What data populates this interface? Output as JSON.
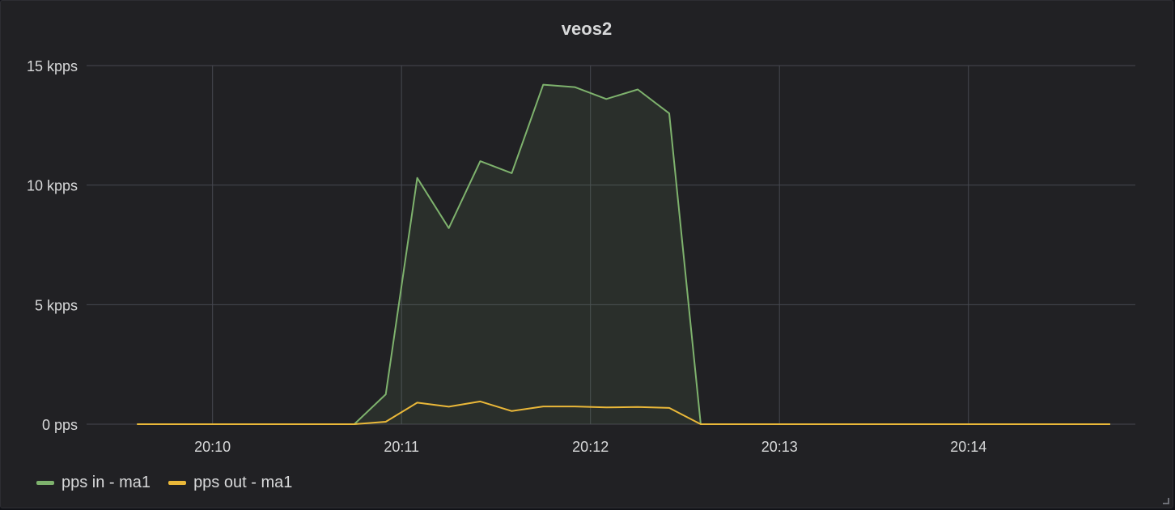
{
  "panel": {
    "title": "veos2"
  },
  "colors": {
    "background": "#212124",
    "grid": "#464850",
    "text": "#d8d9da",
    "pps_in": "#7eb26d",
    "pps_out": "#eab839"
  },
  "chart_data": {
    "type": "area",
    "title": "veos2",
    "xlabel": "",
    "ylabel": "",
    "ylim": [
      0,
      15000
    ],
    "xlim": [
      "20:09:20",
      "20:14:53"
    ],
    "y_ticks": [
      {
        "value": 0,
        "label": "0 pps"
      },
      {
        "value": 5000,
        "label": "5 kpps"
      },
      {
        "value": 10000,
        "label": "10 kpps"
      },
      {
        "value": 15000,
        "label": "15 kpps"
      }
    ],
    "x_ticks": [
      {
        "value": "20:10:00",
        "label": "20:10"
      },
      {
        "value": "20:11:00",
        "label": "20:11"
      },
      {
        "value": "20:12:00",
        "label": "20:12"
      },
      {
        "value": "20:13:00",
        "label": "20:13"
      },
      {
        "value": "20:14:00",
        "label": "20:14"
      }
    ],
    "grid": true,
    "legend_position": "bottom-left",
    "series": [
      {
        "name": "pps in - ma1",
        "color": "#7eb26d",
        "fill": true,
        "points": [
          [
            "20:09:36",
            0
          ],
          [
            "20:10:45",
            0
          ],
          [
            "20:10:55",
            1250
          ],
          [
            "20:11:05",
            10300
          ],
          [
            "20:11:15",
            8200
          ],
          [
            "20:11:25",
            11000
          ],
          [
            "20:11:35",
            10500
          ],
          [
            "20:11:45",
            14200
          ],
          [
            "20:11:55",
            14100
          ],
          [
            "20:12:05",
            13600
          ],
          [
            "20:12:15",
            14000
          ],
          [
            "20:12:25",
            13000
          ],
          [
            "20:12:35",
            0
          ],
          [
            "20:14:45",
            0
          ]
        ]
      },
      {
        "name": "pps out - ma1",
        "color": "#eab839",
        "fill": false,
        "points": [
          [
            "20:09:36",
            0
          ],
          [
            "20:10:45",
            0
          ],
          [
            "20:10:55",
            100
          ],
          [
            "20:11:05",
            900
          ],
          [
            "20:11:15",
            730
          ],
          [
            "20:11:25",
            950
          ],
          [
            "20:11:35",
            550
          ],
          [
            "20:11:45",
            740
          ],
          [
            "20:11:55",
            740
          ],
          [
            "20:12:05",
            700
          ],
          [
            "20:12:15",
            720
          ],
          [
            "20:12:25",
            680
          ],
          [
            "20:12:35",
            0
          ],
          [
            "20:14:45",
            0
          ]
        ]
      }
    ]
  }
}
